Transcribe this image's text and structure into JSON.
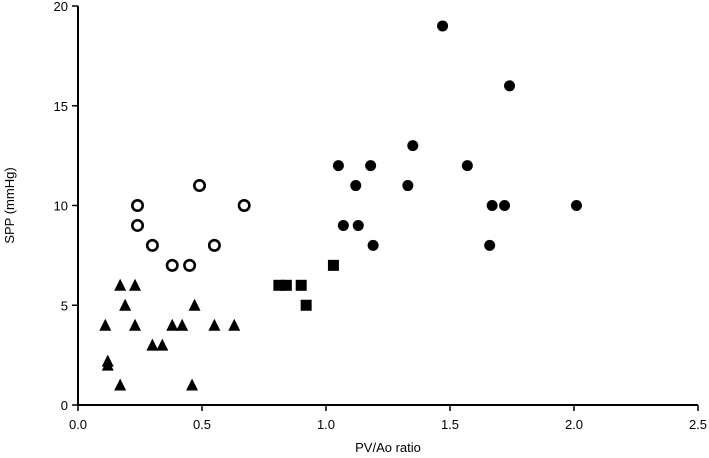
{
  "chart_data": {
    "type": "scatter",
    "title": "",
    "xlabel": "PV/Ao ratio",
    "ylabel": "SPP (mmHg)",
    "xlim": [
      0,
      2.5
    ],
    "ylim": [
      0,
      20
    ],
    "xticks": [
      "0.0",
      "0.5",
      "1.0",
      "1.5",
      "2.0",
      "2.5"
    ],
    "yticks": [
      "0",
      "5",
      "10",
      "15",
      "20"
    ],
    "grid": false,
    "legend": "none",
    "series": [
      {
        "marker": "triangle",
        "color": "#000000",
        "points": [
          [
            0.11,
            4
          ],
          [
            0.12,
            2.2
          ],
          [
            0.12,
            2
          ],
          [
            0.17,
            6
          ],
          [
            0.17,
            1
          ],
          [
            0.19,
            5
          ],
          [
            0.23,
            6
          ],
          [
            0.23,
            4
          ],
          [
            0.3,
            3
          ],
          [
            0.34,
            3
          ],
          [
            0.38,
            4
          ],
          [
            0.42,
            4
          ],
          [
            0.46,
            1
          ],
          [
            0.47,
            5
          ],
          [
            0.55,
            4
          ],
          [
            0.63,
            4
          ]
        ]
      },
      {
        "marker": "open-circle",
        "color": "#000000",
        "points": [
          [
            0.24,
            10
          ],
          [
            0.24,
            9
          ],
          [
            0.3,
            8
          ],
          [
            0.38,
            7
          ],
          [
            0.45,
            7
          ],
          [
            0.49,
            11
          ],
          [
            0.55,
            8
          ],
          [
            0.67,
            10
          ]
        ]
      },
      {
        "marker": "square",
        "color": "#000000",
        "points": [
          [
            0.81,
            6
          ],
          [
            0.84,
            6
          ],
          [
            0.9,
            6
          ],
          [
            0.92,
            5
          ],
          [
            1.03,
            7
          ]
        ]
      },
      {
        "marker": "filled-circle",
        "color": "#000000",
        "points": [
          [
            1.05,
            12
          ],
          [
            1.07,
            9
          ],
          [
            1.12,
            11
          ],
          [
            1.13,
            9
          ],
          [
            1.18,
            12
          ],
          [
            1.19,
            8
          ],
          [
            1.33,
            11
          ],
          [
            1.35,
            13
          ],
          [
            1.47,
            19
          ],
          [
            1.57,
            12
          ],
          [
            1.66,
            8
          ],
          [
            1.67,
            10
          ],
          [
            1.72,
            10
          ],
          [
            1.74,
            16
          ],
          [
            2.01,
            10
          ]
        ]
      }
    ]
  }
}
